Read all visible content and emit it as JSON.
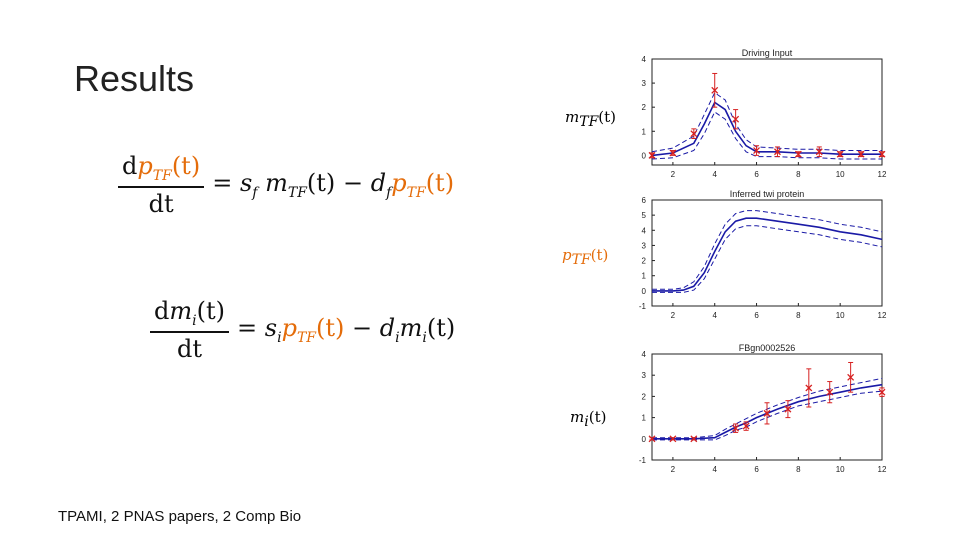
{
  "slide": {
    "title": "Results",
    "footer": "TPAMI, 2 PNAS papers, 2 Comp Bio"
  },
  "equations": {
    "eq1": {
      "num_d": "d",
      "num_var": "p",
      "num_sub": "TF",
      "num_arg": "(t)",
      "den": "dt",
      "rhs_eq": "=",
      "s": "s",
      "s_sub": "f",
      "m": "m",
      "m_sub": "TF",
      "m_arg": "(t)",
      "minus": "−",
      "d": "d",
      "d_sub": "f",
      "p": "p",
      "p_sub": "TF",
      "p_arg": "(t)"
    },
    "eq2": {
      "num_d": "d",
      "num_var": "m",
      "num_sub": "i",
      "num_arg": "(t)",
      "den": "dt",
      "rhs_eq": "=",
      "s": "s",
      "s_sub": "i",
      "p": "p",
      "p_sub": "TF",
      "p_arg": "(t)",
      "minus": "−",
      "d": "d",
      "d_sub": "i",
      "m": "m",
      "m_sub": "i",
      "m_arg": "(t)"
    }
  },
  "labels": {
    "mtf": {
      "var": "m",
      "sub": "TF",
      "arg": "(t)"
    },
    "ptf": {
      "var": "p",
      "sub": "TF",
      "arg": "(t)"
    },
    "mi": {
      "var": "m",
      "sub": "i",
      "arg": "(t)"
    }
  },
  "colors": {
    "orange": "#e46c0a",
    "mean_line": "#1a1aa6",
    "observation": "#d62020"
  },
  "chart_data": [
    {
      "type": "line",
      "title": "Driving Input",
      "xlim": [
        1,
        12
      ],
      "ylim": [
        -0.4,
        4
      ],
      "xticks": [
        "2",
        "4",
        "6",
        "8",
        "10",
        "12"
      ],
      "yticks": [
        "0",
        "1",
        "2",
        "3",
        "4"
      ],
      "series": [
        {
          "name": "mean",
          "x": [
            1,
            2,
            3,
            3.5,
            4,
            4.5,
            5,
            5.5,
            6,
            7,
            8,
            9,
            10,
            11,
            12
          ],
          "values": [
            0,
            0.1,
            0.5,
            1.3,
            2.2,
            1.9,
            1.0,
            0.4,
            0.15,
            0.15,
            0.1,
            0.1,
            0.05,
            0.05,
            0.05
          ]
        },
        {
          "name": "upper",
          "x": [
            1,
            2,
            3,
            3.5,
            4,
            4.5,
            5,
            5.5,
            6,
            7,
            8,
            9,
            10,
            11,
            12
          ],
          "values": [
            0.15,
            0.3,
            0.8,
            1.7,
            2.6,
            2.3,
            1.3,
            0.65,
            0.35,
            0.3,
            0.25,
            0.25,
            0.2,
            0.2,
            0.2
          ]
        },
        {
          "name": "lower",
          "x": [
            1,
            2,
            3,
            3.5,
            4,
            4.5,
            5,
            5.5,
            6,
            7,
            8,
            9,
            10,
            11,
            12
          ],
          "values": [
            -0.15,
            -0.1,
            0.2,
            0.9,
            1.8,
            1.5,
            0.7,
            0.15,
            -0.05,
            -0.05,
            -0.1,
            -0.1,
            -0.15,
            -0.15,
            -0.15
          ]
        }
      ],
      "observations": [
        {
          "x": 1,
          "y": 0,
          "err": 0.1
        },
        {
          "x": 2,
          "y": 0.1,
          "err": 0.1
        },
        {
          "x": 3,
          "y": 0.9,
          "err": 0.2
        },
        {
          "x": 4,
          "y": 2.7,
          "err": 0.7
        },
        {
          "x": 5,
          "y": 1.5,
          "err": 0.4
        },
        {
          "x": 6,
          "y": 0.2,
          "err": 0.2
        },
        {
          "x": 7,
          "y": 0.15,
          "err": 0.2
        },
        {
          "x": 8,
          "y": 0.05,
          "err": 0.1
        },
        {
          "x": 9,
          "y": 0.15,
          "err": 0.2
        },
        {
          "x": 10,
          "y": 0.05,
          "err": 0.1
        },
        {
          "x": 11,
          "y": 0.05,
          "err": 0.1
        },
        {
          "x": 12,
          "y": 0.05,
          "err": 0.1
        }
      ]
    },
    {
      "type": "line",
      "title": "Inferred twi protein",
      "xlim": [
        1,
        12
      ],
      "ylim": [
        -1,
        6
      ],
      "xticks": [
        "2",
        "4",
        "6",
        "8",
        "10",
        "12"
      ],
      "yticks": [
        "-1",
        "0",
        "1",
        "2",
        "3",
        "4",
        "5",
        "6"
      ],
      "series": [
        {
          "name": "mean",
          "x": [
            1,
            2,
            2.5,
            3,
            3.5,
            4,
            4.5,
            5,
            5.5,
            6,
            7,
            8,
            9,
            10,
            11,
            12
          ],
          "values": [
            0,
            0,
            0.05,
            0.3,
            1.2,
            2.6,
            3.9,
            4.6,
            4.8,
            4.8,
            4.6,
            4.4,
            4.2,
            3.9,
            3.7,
            3.4
          ]
        },
        {
          "name": "upper",
          "x": [
            1,
            2,
            2.5,
            3,
            3.5,
            4,
            4.5,
            5,
            5.5,
            6,
            7,
            8,
            9,
            10,
            11,
            12
          ],
          "values": [
            0.1,
            0.1,
            0.2,
            0.6,
            1.6,
            3.1,
            4.4,
            5.1,
            5.3,
            5.3,
            5.1,
            4.9,
            4.7,
            4.4,
            4.2,
            3.9
          ]
        },
        {
          "name": "lower",
          "x": [
            1,
            2,
            2.5,
            3,
            3.5,
            4,
            4.5,
            5,
            5.5,
            6,
            7,
            8,
            9,
            10,
            11,
            12
          ],
          "values": [
            -0.1,
            -0.1,
            -0.1,
            0.05,
            0.8,
            2.1,
            3.4,
            4.1,
            4.3,
            4.3,
            4.1,
            3.9,
            3.7,
            3.4,
            3.2,
            2.9
          ]
        }
      ],
      "observations": []
    },
    {
      "type": "line",
      "title": "FBgn0002526",
      "xlim": [
        1,
        12
      ],
      "ylim": [
        -1,
        4
      ],
      "xticks": [
        "2",
        "4",
        "6",
        "8",
        "10",
        "12"
      ],
      "yticks": [
        "-1",
        "0",
        "1",
        "2",
        "3",
        "4"
      ],
      "series": [
        {
          "name": "mean",
          "x": [
            1,
            2,
            3,
            4,
            4.5,
            5,
            5.5,
            6,
            7,
            8,
            9,
            10,
            11,
            12
          ],
          "values": [
            0,
            0,
            0,
            0.05,
            0.3,
            0.55,
            0.75,
            1.0,
            1.4,
            1.75,
            2.0,
            2.2,
            2.4,
            2.55
          ]
        },
        {
          "name": "upper",
          "x": [
            1,
            2,
            3,
            4,
            4.5,
            5,
            5.5,
            6,
            7,
            8,
            9,
            10,
            11,
            12
          ],
          "values": [
            0.05,
            0.05,
            0.05,
            0.15,
            0.45,
            0.7,
            0.95,
            1.2,
            1.6,
            1.95,
            2.25,
            2.45,
            2.65,
            2.85
          ]
        },
        {
          "name": "lower",
          "x": [
            1,
            2,
            3,
            4,
            4.5,
            5,
            5.5,
            6,
            7,
            8,
            9,
            10,
            11,
            12
          ],
          "values": [
            -0.05,
            -0.05,
            -0.05,
            -0.05,
            0.15,
            0.4,
            0.55,
            0.8,
            1.2,
            1.55,
            1.75,
            1.95,
            2.15,
            2.25
          ]
        }
      ],
      "observations": [
        {
          "x": 1,
          "y": 0,
          "err": 0.05
        },
        {
          "x": 2,
          "y": 0,
          "err": 0.05
        },
        {
          "x": 3,
          "y": 0,
          "err": 0.05
        },
        {
          "x": 5,
          "y": 0.5,
          "err": 0.2
        },
        {
          "x": 5.5,
          "y": 0.6,
          "err": 0.2
        },
        {
          "x": 6.5,
          "y": 1.2,
          "err": 0.5
        },
        {
          "x": 7.5,
          "y": 1.4,
          "err": 0.4
        },
        {
          "x": 8.5,
          "y": 2.4,
          "err": 0.9
        },
        {
          "x": 9.5,
          "y": 2.2,
          "err": 0.5
        },
        {
          "x": 10.5,
          "y": 2.9,
          "err": 0.7
        },
        {
          "x": 12,
          "y": 2.2,
          "err": 0.2
        }
      ]
    }
  ]
}
